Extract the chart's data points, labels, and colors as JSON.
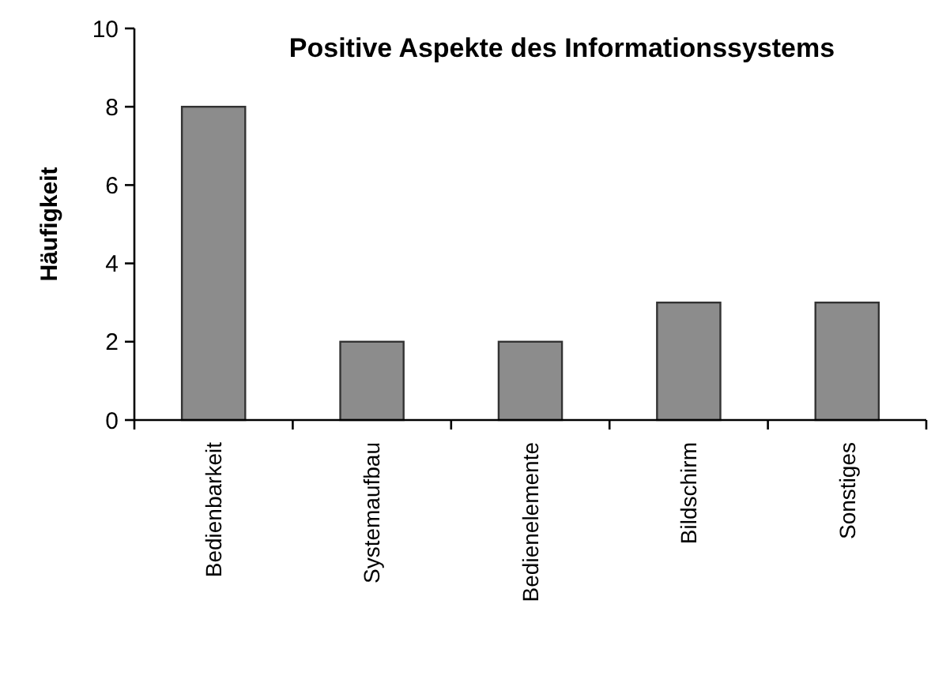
{
  "chart_data": {
    "type": "bar",
    "title": "Positive Aspekte des Informationssystems",
    "ylabel": "Häufigkeit",
    "categories": [
      "Bedienbarkeit",
      "Systemaufbau",
      "Bedienelemente",
      "Bildschirm",
      "Sonstiges"
    ],
    "values": [
      8,
      2,
      2,
      3,
      3
    ],
    "color": "#8c8c8c",
    "ylim": [
      0,
      10
    ],
    "yticks": [
      0,
      2,
      4,
      6,
      8,
      10
    ],
    "grid": false
  }
}
